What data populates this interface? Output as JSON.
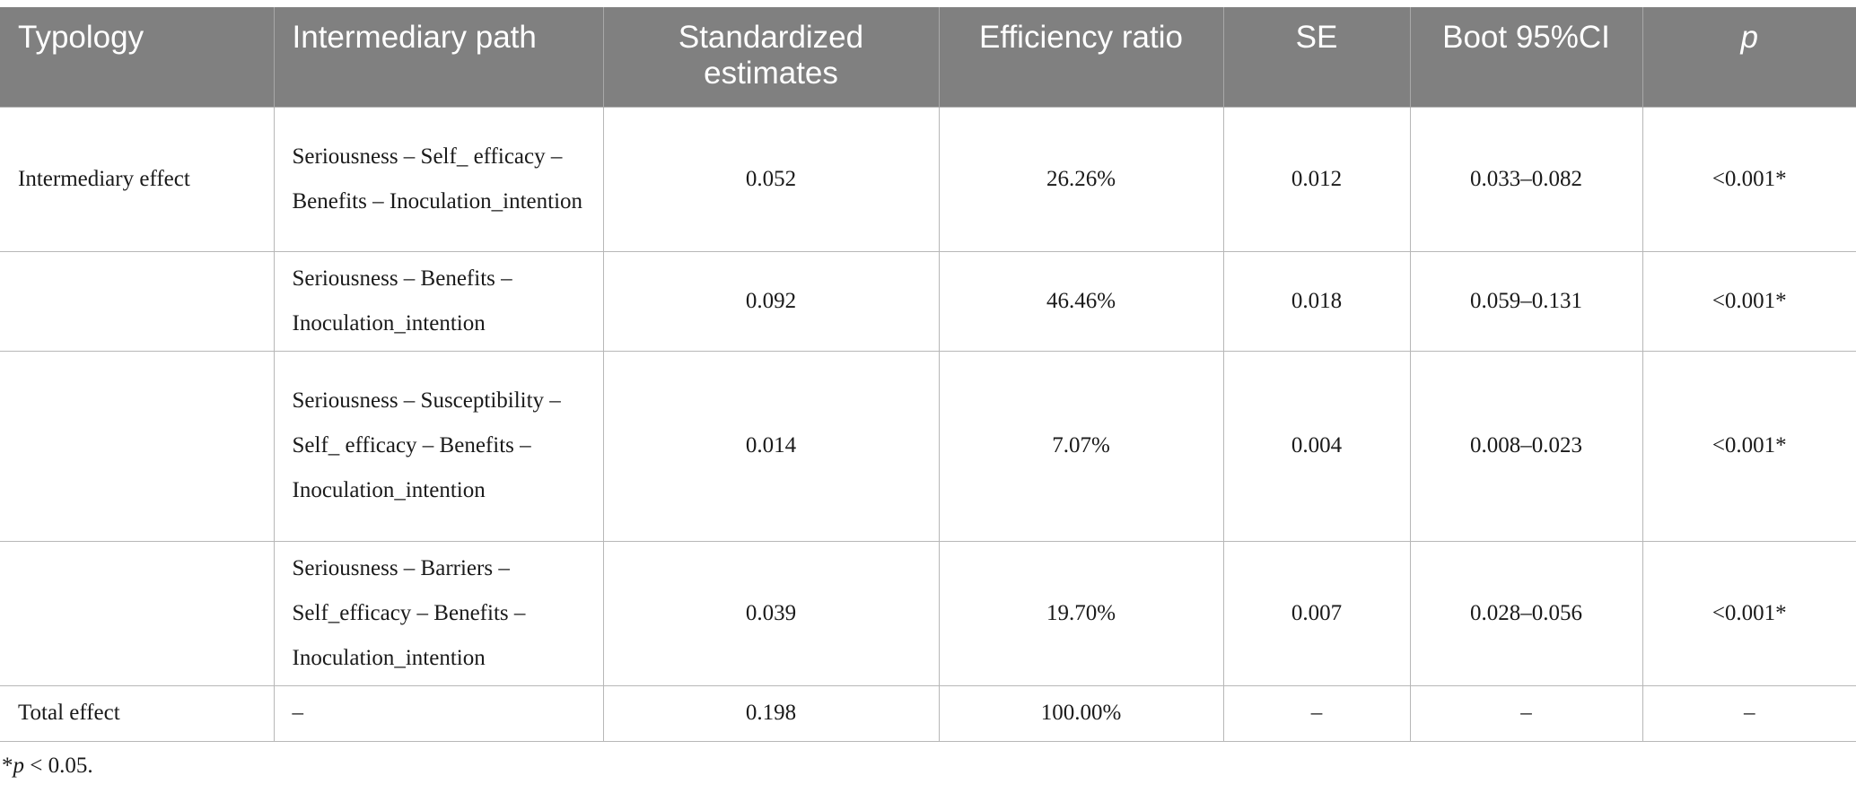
{
  "table": {
    "headers": [
      "Typology",
      "Intermediary path",
      "Standardized estimates",
      "Efficiency ratio",
      "SE",
      "Boot 95%CI",
      "p"
    ],
    "rows": [
      {
        "typology": "Intermediary effect",
        "path": "Seriousness – Self_ efficacy – Benefits – Inoculation_intention",
        "estimate": "0.052",
        "ratio": "26.26%",
        "se": "0.012",
        "ci": "0.033–0.082",
        "p": "<0.001*"
      },
      {
        "typology": "",
        "path": "Seriousness – Benefits – Inoculation_intention",
        "estimate": "0.092",
        "ratio": "46.46%",
        "se": "0.018",
        "ci": "0.059–0.131",
        "p": "<0.001*"
      },
      {
        "typology": "",
        "path": "Seriousness – Susceptibility – Self_ efficacy – Benefits – Inoculation_intention",
        "estimate": "0.014",
        "ratio": "7.07%",
        "se": "0.004",
        "ci": "0.008–0.023",
        "p": "<0.001*"
      },
      {
        "typology": "",
        "path": "Seriousness – Barriers – Self_efficacy – Benefits – Inoculation_intention",
        "estimate": "0.039",
        "ratio": "19.70%",
        "se": "0.007",
        "ci": "0.028–0.056",
        "p": "<0.001*"
      },
      {
        "typology": "Total effect",
        "path": "–",
        "estimate": "0.198",
        "ratio": "100.00%",
        "se": "–",
        "ci": "–",
        "p": "–"
      }
    ]
  },
  "footnote": {
    "marker": "*",
    "symbol": "p",
    "text": " < 0.05."
  }
}
